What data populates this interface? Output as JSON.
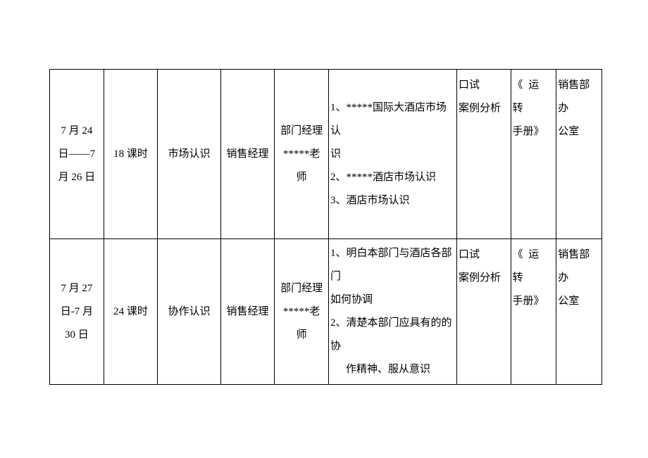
{
  "rows": [
    {
      "date_l1": "7 月 24",
      "date_l2": "日——7",
      "date_l3": "月 26 日",
      "hours": "18 课时",
      "topic": "市场认识",
      "role": "销售经理",
      "teacher_l1": "部门经理",
      "teacher_l2": "*****老",
      "teacher_l3": "师",
      "content_l1": "1、*****国际大酒店市场认",
      "content_l2": "识",
      "content_l3": "2、*****酒店市场认识",
      "content_l4": "3、酒店市场认识",
      "exam_l1": "口试",
      "exam_l2": "案例分析",
      "material_l1": "《 运 转",
      "material_l2": "手册》",
      "place_l1": "销售部办",
      "place_l2": "公室"
    },
    {
      "date_l1": "7 月 27",
      "date_l2": "日-7 月",
      "date_l3": "30 日",
      "hours": "24 课时",
      "topic": "协作认识",
      "role": "销售经理",
      "teacher_l1": "部门经理",
      "teacher_l2": "*****老",
      "teacher_l3": "师",
      "content_l1": "1、明白本部门与酒店各部门",
      "content_l2": "如何协调",
      "content_l3": "2、清楚本部门应具有的的协",
      "content_l4": "作精神、服从意识",
      "exam_l1": "口试",
      "exam_l2": "案例分析",
      "material_l1": "《 运 转",
      "material_l2": "手册》",
      "place_l1": "销售部办",
      "place_l2": "公室"
    }
  ]
}
